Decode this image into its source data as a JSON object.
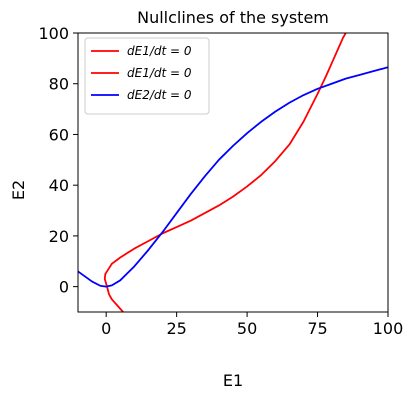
{
  "chart_data": {
    "type": "line",
    "title": "Nullclines of the system",
    "xlabel": "E1",
    "ylabel": "E2",
    "xlim": [
      -10,
      100
    ],
    "ylim": [
      -10,
      100
    ],
    "xticks": [
      0,
      25,
      50,
      75,
      100
    ],
    "yticks": [
      0,
      20,
      40,
      60,
      80,
      100
    ],
    "xtick_labels": [
      "0",
      "25",
      "50",
      "75",
      "100"
    ],
    "ytick_labels": [
      "0",
      "20",
      "40",
      "60",
      "80",
      "100"
    ],
    "grid": false,
    "legend_position": "top-left",
    "series": [
      {
        "name": "dE1/dt = 0",
        "color": "#ff0000",
        "x": [
          6.0,
          4.0,
          2.0,
          1.0,
          0.3,
          -0.5,
          -0.3
        ],
        "y": [
          -10.0,
          -7.5,
          -5.0,
          -3.0,
          0.0,
          3.0,
          5.0
        ]
      },
      {
        "name": "dE1/dt = 0",
        "color": "#ff0000",
        "x": [
          -0.3,
          2,
          5,
          10,
          15,
          20,
          25,
          30,
          35,
          40,
          45,
          50,
          55,
          60,
          65,
          70,
          75,
          78,
          80,
          82,
          84,
          86
        ],
        "y": [
          5.0,
          9.0,
          11.5,
          15.0,
          18.0,
          21.0,
          23.5,
          26.0,
          29.0,
          32.0,
          35.5,
          39.5,
          44.0,
          49.5,
          56.0,
          65.0,
          76.0,
          83.0,
          88.0,
          93.0,
          98.0,
          102.0
        ]
      },
      {
        "name": "dE2/dt = 0",
        "color": "#0000ff",
        "x": [
          -10,
          -5,
          -2,
          0,
          2,
          5,
          10,
          15,
          20,
          25,
          30,
          35,
          40,
          45,
          50,
          55,
          60,
          65,
          70,
          75,
          80,
          85,
          90,
          95,
          100
        ],
        "y": [
          6.0,
          2.0,
          0.3,
          0.0,
          0.5,
          2.5,
          8.0,
          14.5,
          21.5,
          29.0,
          36.5,
          43.5,
          50.0,
          55.5,
          60.5,
          65.0,
          69.0,
          72.5,
          75.5,
          78.0,
          80.0,
          82.0,
          83.5,
          85.0,
          86.5
        ]
      }
    ]
  },
  "legend": {
    "entries": [
      {
        "label": "dE1/dt = 0",
        "color": "#ff0000"
      },
      {
        "label": "dE1/dt = 0",
        "color": "#ff0000"
      },
      {
        "label": "dE2/dt = 0",
        "color": "#0000ff"
      }
    ]
  }
}
